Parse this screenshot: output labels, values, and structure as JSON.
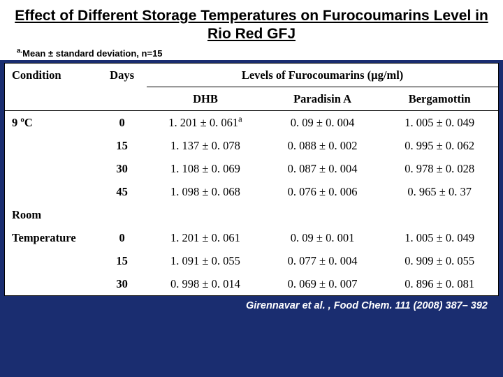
{
  "title": "Effect of Different Storage Temperatures on Furocoumarins Level in Rio Red GFJ",
  "subtitle_prefix": "a.",
  "subtitle": "Mean ± standard deviation, n=15",
  "header": {
    "condition": "Condition",
    "days": "Days",
    "group": "Levels of Furocoumarins (µg/ml)",
    "sub": {
      "dhb": "DHB",
      "paradisin": "Paradisin A",
      "bergamottin": "Bergamottin"
    }
  },
  "rows": [
    {
      "cond": "9 ºC",
      "days": "0",
      "dhb": "1. 201 ± 0. 061",
      "dhb_sup": "a",
      "par": "0. 09 ± 0. 004",
      "ber": "1. 005 ± 0. 049"
    },
    {
      "cond": "",
      "days": "15",
      "dhb": "1. 137 ± 0. 078",
      "dhb_sup": "",
      "par": "0. 088 ± 0. 002",
      "ber": "0. 995 ± 0. 062"
    },
    {
      "cond": "",
      "days": "30",
      "dhb": "1. 108 ± 0. 069",
      "dhb_sup": "",
      "par": "0. 087 ± 0. 004",
      "ber": "0. 978 ± 0. 028"
    },
    {
      "cond": "",
      "days": "45",
      "dhb": "1. 098 ± 0. 068",
      "dhb_sup": "",
      "par": "0. 076 ± 0. 006",
      "ber": "0. 965 ± 0. 37"
    },
    {
      "cond": "Room",
      "days": "",
      "dhb": "",
      "dhb_sup": "",
      "par": "",
      "ber": ""
    },
    {
      "cond": "Temperature",
      "days": "0",
      "dhb": "1. 201 ± 0. 061",
      "dhb_sup": "",
      "par": "0. 09 ± 0. 001",
      "ber": "1. 005 ± 0. 049"
    },
    {
      "cond": "",
      "days": "15",
      "dhb": "1. 091 ± 0. 055",
      "dhb_sup": "",
      "par": "0. 077 ± 0. 004",
      "ber": "0. 909 ± 0. 055"
    },
    {
      "cond": "",
      "days": "30",
      "dhb": "0. 998 ± 0. 014",
      "dhb_sup": "",
      "par": "0. 069 ± 0. 007",
      "ber": "0. 896 ± 0. 081"
    }
  ],
  "footer": "Girennavar et al. , Food Chem. 111 (2008) 387– 392",
  "colors": {
    "page_bg": "#1a2d70",
    "table_bg": "#ffffff",
    "text": "#000000",
    "footer_text": "#ffffff"
  }
}
